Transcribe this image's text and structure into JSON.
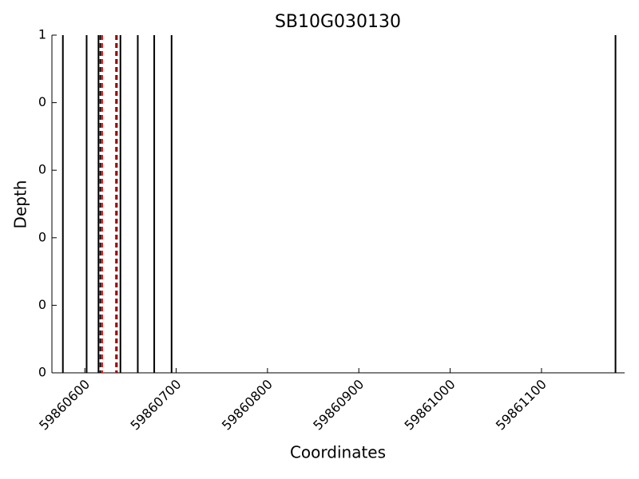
{
  "chart_data": {
    "type": "vline",
    "title": "SB10G030130",
    "x_label": "Coordinates",
    "y_label": "Depth",
    "xlim": [
      59860564,
      59861191
    ],
    "xticks": [
      59860600,
      59860700,
      59860800,
      59860900,
      59861000,
      59861100
    ],
    "ylim": [
      0,
      1
    ],
    "yticks": [
      {
        "value": 0,
        "label": "0"
      },
      {
        "value": 0.2,
        "label": "0"
      },
      {
        "value": 0.4,
        "label": "0"
      },
      {
        "value": 0.6,
        "label": "0"
      },
      {
        "value": 0.8,
        "label": "0"
      },
      {
        "value": 1,
        "label": "1"
      }
    ],
    "series": [
      {
        "color": "#000000",
        "style": "solid",
        "x": [
          59860576,
          59860602,
          59860615,
          59860639,
          59860658,
          59860676,
          59860695,
          59861181
        ]
      },
      {
        "color": "#000000",
        "style": "dashed",
        "x": [
          59860617,
          59860635
        ]
      },
      {
        "color": "#ff0000",
        "style": "dashed",
        "x": [
          59860619,
          59860634
        ]
      }
    ]
  }
}
